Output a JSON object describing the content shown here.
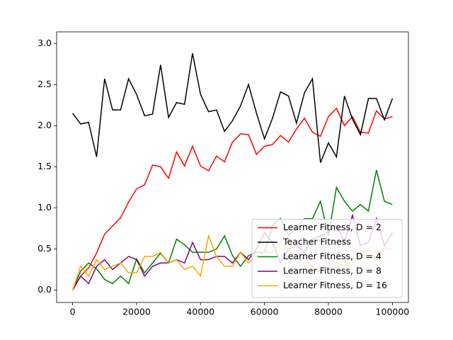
{
  "chart_data": {
    "type": "line",
    "x": [
      0,
      2500,
      5000,
      7500,
      10000,
      12500,
      15000,
      17500,
      20000,
      22500,
      25000,
      27500,
      30000,
      32500,
      35000,
      37500,
      40000,
      42500,
      45000,
      47500,
      50000,
      52500,
      55000,
      57500,
      60000,
      62500,
      65000,
      67500,
      70000,
      72500,
      75000,
      77500,
      80000,
      82500,
      85000,
      87500,
      90000,
      92500,
      95000,
      97500,
      100000
    ],
    "series": [
      {
        "name": "Learner Fitness, D = 2",
        "color": "#ff0000",
        "values": [
          0,
          0.17,
          0.27,
          0.45,
          0.68,
          0.78,
          0.88,
          1.07,
          1.23,
          1.28,
          1.52,
          1.5,
          1.36,
          1.68,
          1.51,
          1.75,
          1.51,
          1.45,
          1.63,
          1.56,
          1.8,
          1.9,
          1.89,
          1.65,
          1.75,
          1.77,
          1.88,
          1.8,
          1.96,
          2.09,
          1.92,
          1.87,
          2.11,
          2.21,
          2.0,
          2.11,
          1.92,
          1.91,
          2.18,
          2.08,
          2.11
        ]
      },
      {
        "name": "Teacher Fitness",
        "color": "#000000",
        "values": [
          2.15,
          2.02,
          2.04,
          1.62,
          2.57,
          2.19,
          2.19,
          2.57,
          2.38,
          2.12,
          2.14,
          2.74,
          2.1,
          2.28,
          2.26,
          2.88,
          2.38,
          2.17,
          2.19,
          1.93,
          2.06,
          2.24,
          2.5,
          2.15,
          1.84,
          2.09,
          2.41,
          2.36,
          2.03,
          2.4,
          2.57,
          1.55,
          1.79,
          1.62,
          2.36,
          2.08,
          1.89,
          2.33,
          2.33,
          2.07,
          2.33
        ]
      },
      {
        "name": "Learner Fitness, D = 4",
        "color": "#008000",
        "values": [
          0,
          0.23,
          0.33,
          0.26,
          0.13,
          0.08,
          0.17,
          0.08,
          0.38,
          0.21,
          0.33,
          0.45,
          0.33,
          0.62,
          0.55,
          0.46,
          0.46,
          0.46,
          0.5,
          0.66,
          0.42,
          0.29,
          0.42,
          0.46,
          0.46,
          0.79,
          0.87,
          0.67,
          0.75,
          0.87,
          0.87,
          1.08,
          0.66,
          1.25,
          1.08,
          0.96,
          1.04,
          0.96,
          1.46,
          1.08,
          1.04
        ]
      },
      {
        "name": "Learner Fitness, D = 8",
        "color": "#800080",
        "values": [
          0,
          0.17,
          0.08,
          0.29,
          0.37,
          0.25,
          0.33,
          0.41,
          0.37,
          0.17,
          0.29,
          0.33,
          0.33,
          0.37,
          0.33,
          0.58,
          0.37,
          0.37,
          0.41,
          0.41,
          0.33,
          0.46,
          0.37,
          0.5,
          0.7,
          0.58,
          0.33,
          0.5,
          0.54,
          0.46,
          0.62,
          0.66,
          0.71,
          0.79,
          0.58,
          0.91,
          0.54,
          0.58,
          0.87,
          0.54,
          0.7
        ]
      },
      {
        "name": "Learner Fitness, D = 16",
        "color": "#ffa500",
        "values": [
          0,
          0.29,
          0.17,
          0.37,
          0.25,
          0.29,
          0.33,
          0.21,
          0.21,
          0.41,
          0.41,
          0.46,
          0.33,
          0.37,
          0.25,
          0.29,
          0.17,
          0.66,
          0.41,
          0.29,
          0.29,
          0.46,
          0.33,
          0.41,
          0.46,
          0.46,
          0.58,
          0.5,
          0.41,
          0.33,
          0.29,
          0.21,
          0.37,
          0.33,
          0.29,
          0.37,
          0.41,
          0.5,
          0.37,
          0.5,
          0.5
        ]
      }
    ],
    "xlim": [
      -5000,
      105000
    ],
    "ylim": [
      -0.15,
      3.14
    ],
    "xticks": [
      0,
      20000,
      40000,
      60000,
      80000,
      100000
    ],
    "yticks": [
      {
        "value": 0,
        "label": "0.0"
      },
      0.5,
      {
        "value": 1,
        "label": "1.0"
      },
      1.5,
      {
        "value": 2,
        "label": "2.0"
      },
      2.5,
      {
        "value": 3,
        "label": "3.0"
      }
    ],
    "legend": "lower right"
  }
}
